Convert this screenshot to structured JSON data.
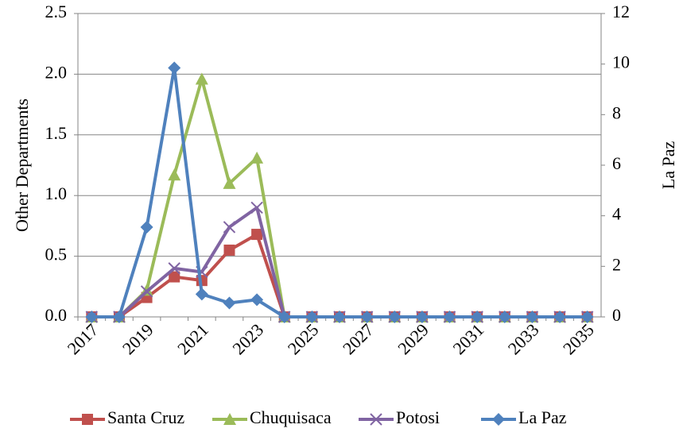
{
  "chart_data": {
    "type": "line",
    "categories": [
      "2017",
      null,
      "2019",
      null,
      "2021",
      null,
      "2023",
      null,
      "2025",
      null,
      "2027",
      null,
      "2029",
      null,
      "2031",
      null,
      "2033",
      null,
      "2035"
    ],
    "y_label": "Other Departments",
    "y2_label": "La Paz",
    "ylim": [
      0,
      2.5
    ],
    "yticks": [
      {
        "value": 0,
        "label": "0.0"
      },
      {
        "value": 0.5,
        "label": "0.5"
      },
      {
        "value": 1,
        "label": "1.0"
      },
      {
        "value": 1.5,
        "label": "1.5"
      },
      {
        "value": 2,
        "label": "2.0"
      },
      {
        "value": 2.5,
        "label": "2.5"
      }
    ],
    "y2lim": [
      0,
      12
    ],
    "y2ticks": [
      0,
      2,
      4,
      6,
      8,
      10,
      12
    ],
    "grid": true,
    "legend": "bottom",
    "series": [
      {
        "name": "Santa Cruz",
        "color": "#c0504d",
        "marker": "square",
        "values": [
          0,
          0,
          0.16,
          0.33,
          0.3,
          0.55,
          0.68,
          0,
          0,
          0,
          0,
          0,
          0,
          0,
          0,
          0,
          0,
          0,
          0
        ]
      },
      {
        "name": "Chuquisaca",
        "color": "#9bbb59",
        "marker": "triangle",
        "values": [
          0,
          0,
          0.22,
          1.17,
          1.96,
          1.1,
          1.31,
          0,
          0,
          0,
          0,
          0,
          0,
          0,
          0,
          0,
          0,
          0,
          0
        ]
      },
      {
        "name": "Potosi",
        "color": "#8064a2",
        "marker": "x",
        "values": [
          0,
          0,
          0.21,
          0.4,
          0.37,
          0.74,
          0.9,
          0,
          0,
          0,
          0,
          0,
          0,
          0,
          0,
          0,
          0,
          0,
          0
        ]
      },
      {
        "name": "La Paz",
        "color": "#4f81bd",
        "marker": "diamond",
        "axis": "y2",
        "values": [
          0,
          0,
          3.55,
          9.85,
          0.9,
          0.55,
          0.68,
          0,
          0,
          0,
          0,
          0,
          0,
          0,
          0,
          0,
          0,
          0,
          0
        ]
      }
    ]
  }
}
